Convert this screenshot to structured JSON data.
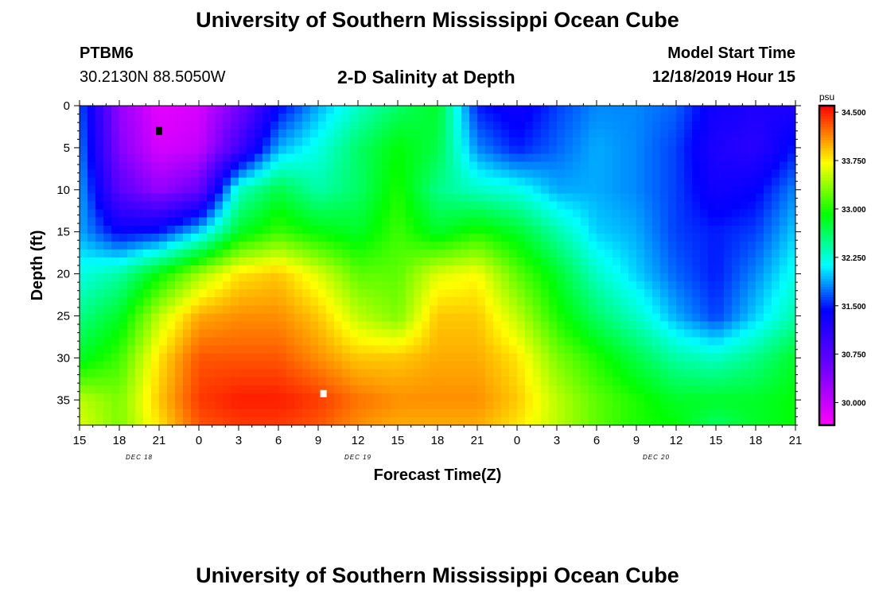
{
  "header": {
    "title_top": "University of Southern Mississippi Ocean Cube",
    "title_bottom": "University of Southern Mississippi Ocean Cube",
    "station": "PTBM6",
    "coordinates": "30.2130N 88.5050W",
    "subtitle": "2-D Salinity at Depth",
    "model_start_label": "Model Start Time",
    "model_start_value": "12/18/2019 Hour 15"
  },
  "chart_data": {
    "type": "heatmap",
    "title": "2-D Salinity at Depth",
    "xlabel": "Forecast Time(Z)",
    "ylabel": "Depth (ft)",
    "x_tick_labels": [
      "15",
      "18",
      "21",
      "0",
      "3",
      "6",
      "9",
      "12",
      "15",
      "18",
      "21",
      "0",
      "3",
      "6",
      "9",
      "12",
      "15",
      "18",
      "21"
    ],
    "x_hours": [
      0,
      54
    ],
    "date_labels": [
      {
        "label": "DEC 18",
        "hour": 4.5
      },
      {
        "label": "DEC 19",
        "hour": 21
      },
      {
        "label": "DEC 20",
        "hour": 43.5
      }
    ],
    "y_ticks": [
      0,
      5,
      10,
      15,
      20,
      25,
      30,
      35
    ],
    "ylim": [
      38,
      0
    ],
    "colorbar": {
      "unit": "psu",
      "ticks": [
        "34.500",
        "33.750",
        "33.000",
        "32.250",
        "31.500",
        "30.750",
        "30.000"
      ],
      "tick_values": [
        34.5,
        33.75,
        33.0,
        32.25,
        31.5,
        30.75,
        30.0
      ],
      "range": [
        29.65,
        34.6
      ]
    },
    "time_hours": [
      0,
      3,
      6,
      9,
      12,
      15,
      18,
      21,
      24,
      27,
      30,
      33,
      36,
      39,
      42,
      45,
      48,
      51,
      54
    ],
    "depths_ft": [
      0,
      5,
      10,
      15,
      20,
      25,
      30,
      35,
      38
    ],
    "salinity_psu": [
      [
        31.7,
        30.3,
        29.8,
        29.9,
        30.5,
        31.4,
        31.9,
        32.3,
        32.6,
        32.8,
        31.5,
        31.3,
        31.6,
        31.8,
        31.8,
        31.7,
        31.3,
        31.2,
        31.2
      ],
      [
        31.8,
        30.4,
        29.9,
        30.0,
        30.9,
        31.9,
        32.2,
        32.6,
        32.9,
        32.7,
        31.8,
        31.5,
        31.7,
        31.9,
        31.8,
        31.6,
        31.2,
        31.1,
        31.5
      ],
      [
        31.9,
        30.7,
        30.3,
        30.6,
        32.3,
        32.7,
        32.4,
        32.6,
        33.0,
        32.5,
        32.3,
        32.2,
        31.9,
        31.9,
        31.8,
        31.6,
        31.3,
        31.4,
        31.8
      ],
      [
        31.9,
        31.4,
        31.5,
        32.0,
        32.8,
        33.1,
        32.9,
        32.8,
        33.1,
        32.8,
        33.0,
        32.8,
        32.4,
        32.0,
        31.9,
        31.6,
        31.5,
        31.6,
        32.0
      ],
      [
        32.2,
        32.4,
        32.9,
        33.4,
        33.8,
        33.9,
        33.6,
        33.2,
        33.2,
        33.6,
        33.7,
        33.2,
        32.8,
        32.3,
        32.0,
        31.7,
        31.5,
        31.8,
        32.2
      ],
      [
        32.5,
        32.8,
        33.5,
        34.0,
        34.1,
        34.1,
        33.9,
        33.5,
        33.3,
        33.9,
        33.9,
        33.5,
        33.0,
        32.6,
        32.3,
        31.9,
        31.6,
        32.0,
        32.4
      ],
      [
        32.8,
        33.1,
        33.8,
        34.3,
        34.3,
        34.3,
        34.1,
        33.9,
        33.9,
        34.0,
        34.0,
        33.8,
        33.3,
        33.0,
        32.7,
        32.4,
        32.3,
        32.5,
        32.8
      ],
      [
        33.5,
        33.3,
        33.9,
        34.4,
        34.5,
        34.5,
        34.4,
        34.2,
        34.1,
        34.1,
        34.1,
        33.9,
        33.5,
        33.2,
        33.0,
        32.8,
        32.8,
        32.8,
        32.9
      ],
      [
        33.6,
        33.3,
        33.8,
        34.3,
        34.4,
        34.4,
        34.3,
        34.1,
        34.0,
        34.0,
        34.0,
        33.8,
        33.5,
        33.2,
        33.0,
        32.9,
        32.6,
        32.8,
        32.9
      ]
    ],
    "colors": {
      "frame": "#000000",
      "text": "#000000",
      "min_marker": "#000000",
      "max_marker": "#ffffff"
    }
  }
}
